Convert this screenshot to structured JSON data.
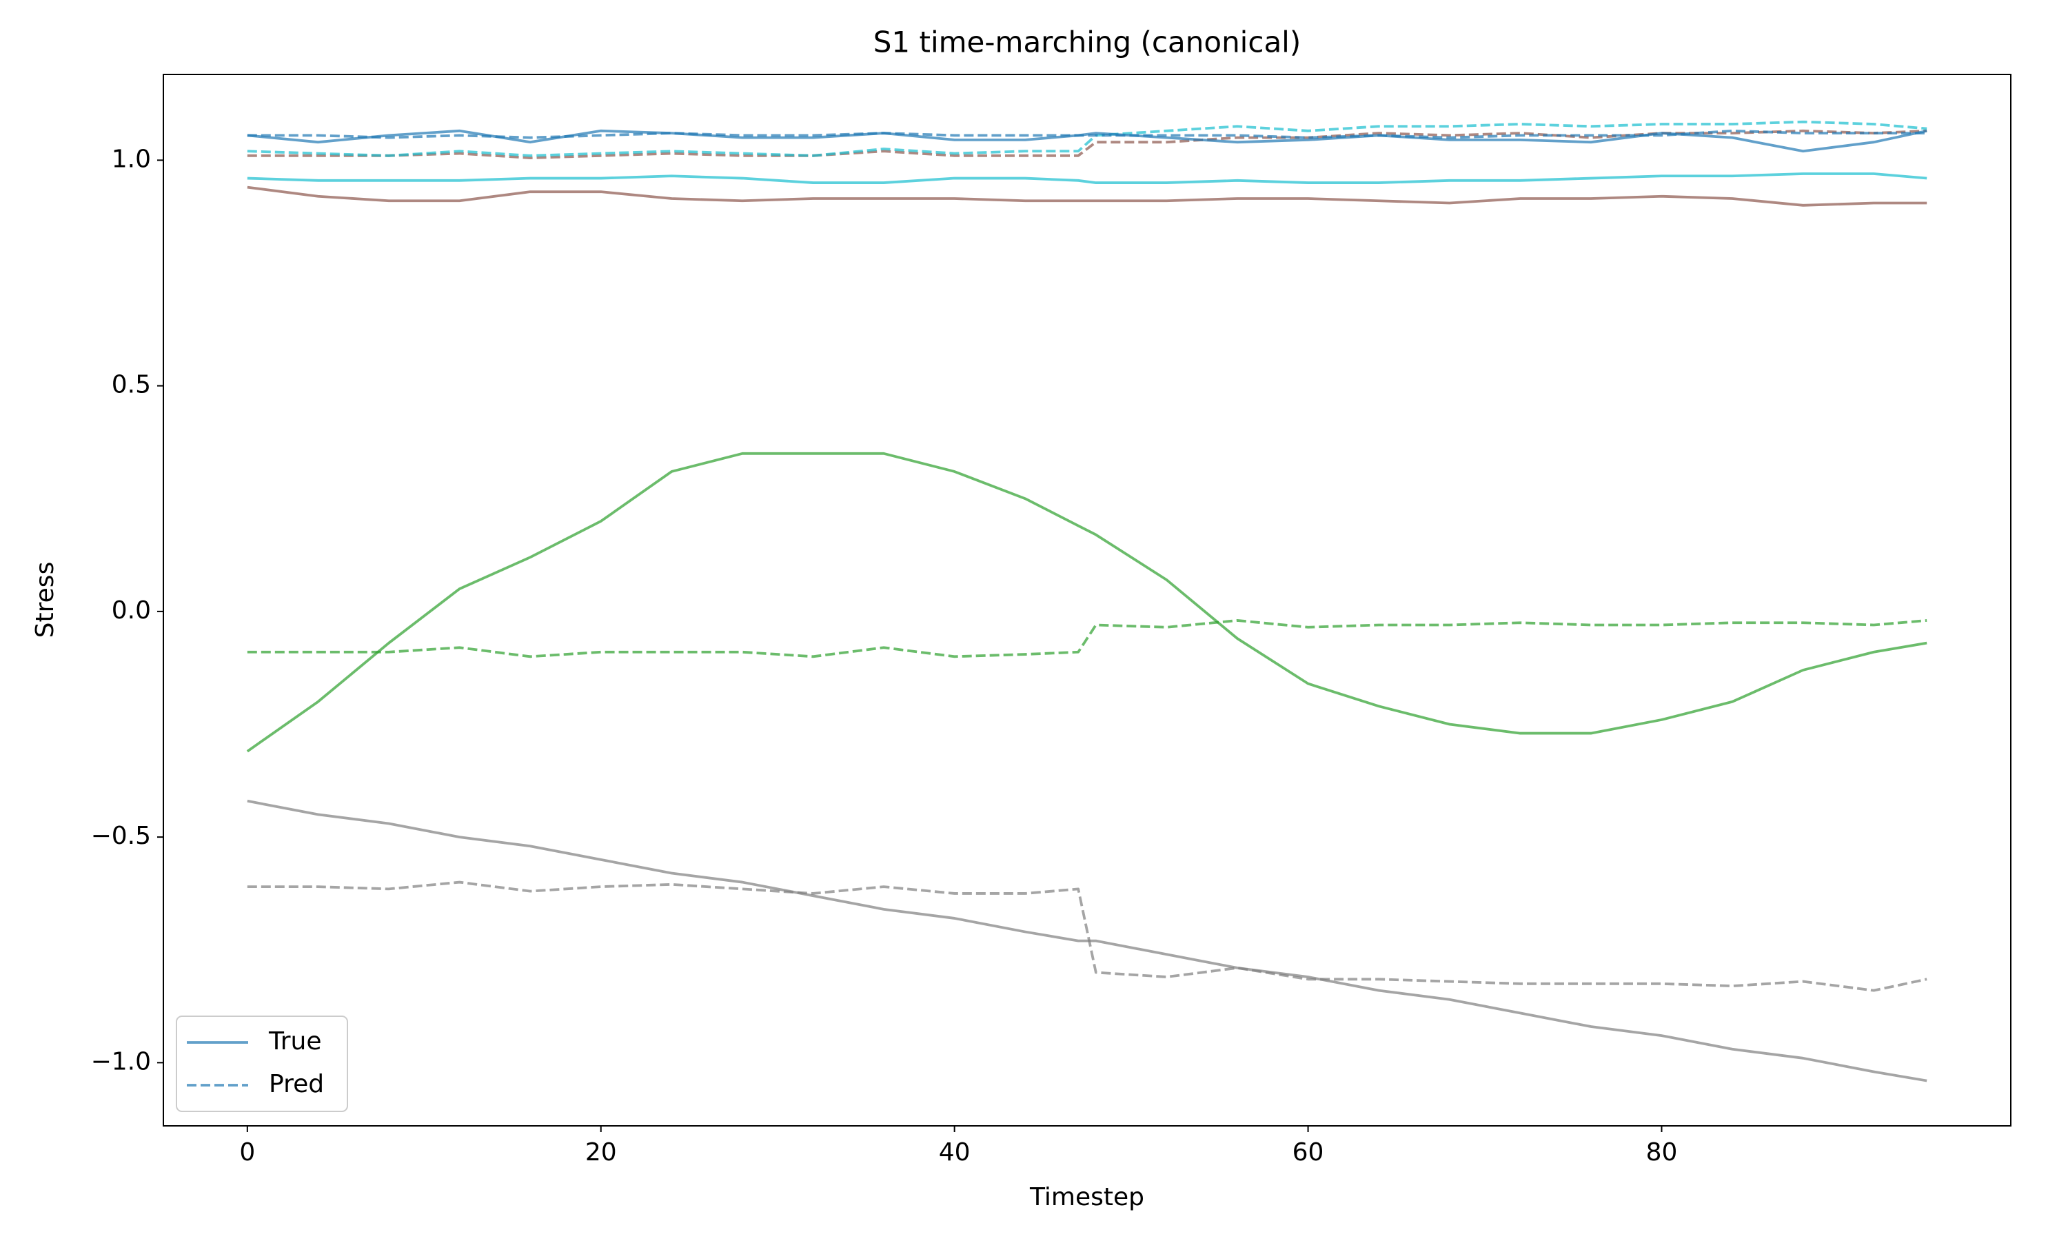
{
  "chart_data": {
    "type": "line",
    "title": "S1 time-marching (canonical)",
    "x_label": "Timestep",
    "y_label": "Stress",
    "x": [
      0,
      4,
      8,
      12,
      16,
      20,
      24,
      28,
      32,
      36,
      40,
      44,
      47,
      48,
      52,
      56,
      60,
      64,
      68,
      72,
      76,
      80,
      84,
      88,
      92,
      95
    ],
    "xlim": [
      -4.75,
      99.75
    ],
    "xticks": [
      0,
      20,
      40,
      60,
      80
    ],
    "ylim": [
      -1.14,
      1.19
    ],
    "yticks": [
      {
        "value": -1,
        "label": "−1.0"
      },
      {
        "value": -0.5,
        "label": "−0.5"
      },
      {
        "value": 0,
        "label": "0.0"
      },
      0.5,
      {
        "value": 1,
        "label": "1.0"
      }
    ],
    "grid": false,
    "legend_loc": "lower left",
    "legend": [
      {
        "label": "True",
        "color": "#1f77b4",
        "dash": false
      },
      {
        "label": "Pred",
        "color": "#1f77b4",
        "dash": true
      }
    ],
    "series": [
      {
        "color": "#8c564b",
        "dash": false,
        "values": [
          0.94,
          0.92,
          0.91,
          0.91,
          0.93,
          0.93,
          0.915,
          0.91,
          0.915,
          0.915,
          0.915,
          0.91,
          0.91,
          0.91,
          0.91,
          0.915,
          0.915,
          0.91,
          0.905,
          0.915,
          0.915,
          0.92,
          0.915,
          0.9,
          0.905,
          0.905
        ]
      },
      {
        "color": "#8c564b",
        "dash": true,
        "values": [
          1.01,
          1.01,
          1.01,
          1.015,
          1.005,
          1.01,
          1.015,
          1.01,
          1.01,
          1.02,
          1.01,
          1.01,
          1.01,
          1.04,
          1.04,
          1.05,
          1.05,
          1.06,
          1.055,
          1.06,
          1.05,
          1.06,
          1.06,
          1.065,
          1.06,
          1.065
        ]
      },
      {
        "color": "#17becf",
        "dash": false,
        "values": [
          0.96,
          0.955,
          0.955,
          0.955,
          0.96,
          0.96,
          0.965,
          0.96,
          0.95,
          0.95,
          0.96,
          0.96,
          0.955,
          0.95,
          0.95,
          0.955,
          0.95,
          0.95,
          0.955,
          0.955,
          0.96,
          0.965,
          0.965,
          0.97,
          0.97,
          0.96
        ]
      },
      {
        "color": "#17becf",
        "dash": true,
        "values": [
          1.02,
          1.015,
          1.01,
          1.02,
          1.01,
          1.015,
          1.02,
          1.015,
          1.01,
          1.025,
          1.015,
          1.02,
          1.02,
          1.055,
          1.065,
          1.075,
          1.065,
          1.075,
          1.075,
          1.08,
          1.075,
          1.08,
          1.08,
          1.085,
          1.08,
          1.07
        ]
      },
      {
        "color": "#1f77b4",
        "dash": false,
        "values": [
          1.055,
          1.04,
          1.055,
          1.065,
          1.04,
          1.065,
          1.06,
          1.05,
          1.05,
          1.06,
          1.045,
          1.045,
          1.055,
          1.06,
          1.05,
          1.04,
          1.045,
          1.055,
          1.045,
          1.045,
          1.04,
          1.06,
          1.05,
          1.02,
          1.04,
          1.065
        ]
      },
      {
        "color": "#1f77b4",
        "dash": true,
        "values": [
          1.055,
          1.055,
          1.05,
          1.055,
          1.05,
          1.055,
          1.06,
          1.055,
          1.055,
          1.06,
          1.055,
          1.055,
          1.055,
          1.055,
          1.055,
          1.055,
          1.05,
          1.055,
          1.05,
          1.055,
          1.055,
          1.055,
          1.065,
          1.06,
          1.06,
          1.06
        ]
      },
      {
        "color": "#2ca02c",
        "dash": false,
        "values": [
          -0.31,
          -0.2,
          -0.07,
          0.05,
          0.12,
          0.2,
          0.31,
          0.35,
          0.35,
          0.35,
          0.31,
          0.25,
          0.19,
          0.17,
          0.07,
          -0.06,
          -0.16,
          -0.21,
          -0.25,
          -0.27,
          -0.27,
          -0.24,
          -0.2,
          -0.13,
          -0.09,
          -0.07
        ]
      },
      {
        "color": "#2ca02c",
        "dash": true,
        "values": [
          -0.09,
          -0.09,
          -0.09,
          -0.08,
          -0.1,
          -0.09,
          -0.09,
          -0.09,
          -0.1,
          -0.08,
          -0.1,
          -0.095,
          -0.09,
          -0.03,
          -0.035,
          -0.02,
          -0.035,
          -0.03,
          -0.03,
          -0.025,
          -0.03,
          -0.03,
          -0.025,
          -0.025,
          -0.03,
          -0.02
        ]
      },
      {
        "color": "#7f7f7f",
        "dash": false,
        "values": [
          -0.42,
          -0.45,
          -0.47,
          -0.5,
          -0.52,
          -0.55,
          -0.58,
          -0.6,
          -0.63,
          -0.66,
          -0.68,
          -0.71,
          -0.73,
          -0.73,
          -0.76,
          -0.79,
          -0.81,
          -0.84,
          -0.86,
          -0.89,
          -0.92,
          -0.94,
          -0.97,
          -0.99,
          -1.02,
          -1.04
        ]
      },
      {
        "color": "#7f7f7f",
        "dash": true,
        "values": [
          -0.61,
          -0.61,
          -0.615,
          -0.6,
          -0.62,
          -0.61,
          -0.605,
          -0.615,
          -0.625,
          -0.61,
          -0.625,
          -0.625,
          -0.615,
          -0.8,
          -0.81,
          -0.79,
          -0.815,
          -0.815,
          -0.82,
          -0.825,
          -0.825,
          -0.825,
          -0.83,
          -0.82,
          -0.84,
          -0.815
        ]
      }
    ]
  }
}
